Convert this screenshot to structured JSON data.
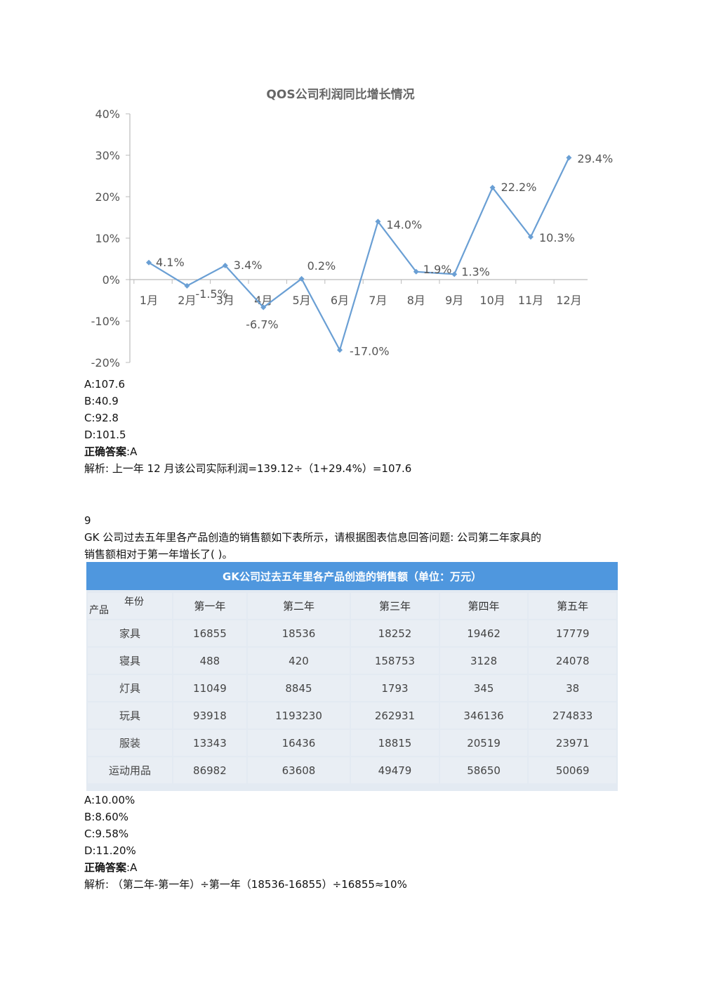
{
  "q8": {
    "chart_data": {
      "type": "line",
      "title": "QOS公司利润同比增长情况",
      "categories": [
        "1月",
        "2月",
        "3月",
        "4月",
        "5月",
        "6月",
        "7月",
        "8月",
        "9月",
        "10月",
        "11月",
        "12月"
      ],
      "series": [
        {
          "values": [
            4.1,
            -1.5,
            3.4,
            -6.7,
            0.2,
            -17.0,
            14.0,
            1.9,
            1.3,
            22.2,
            10.3,
            29.4
          ],
          "labels": [
            "4.1%",
            "-1.5%",
            "3.4%",
            "-6.7%",
            "0.2%",
            "-17.0%",
            "14.0%",
            "1.9%",
            "1.3%",
            "22.2%",
            "10.3%",
            "29.4%"
          ]
        }
      ],
      "yticks": [
        "40%",
        "30%",
        "20%",
        "10%",
        "0%",
        "-10%",
        "-20%"
      ],
      "ylim": [
        -20,
        40
      ],
      "grid": false,
      "color": "#6a9fd4"
    },
    "options": [
      "A:107.6",
      "B:40.9",
      "C:92.8",
      "D:101.5"
    ],
    "answer_label": "正确答案",
    "answer_value": ":A",
    "analysis": "解析: 上一年 12 月该公司实际利润=139.12÷（1+29.4%）=107.6"
  },
  "q9": {
    "number": "9",
    "question_line1": "GK 公司过去五年里各产品创造的销售额如下表所示，请根据图表信息回答问题: 公司第二年家具的",
    "question_line2": "销售额相对于第一年增长了( )。",
    "table": {
      "title": "GK公司过去五年里各产品创造的销售额（单位：万元）",
      "corner_year": "年份",
      "corner_product": "产品",
      "columns": [
        "第一年",
        "第二年",
        "第三年",
        "第四年",
        "第五年"
      ],
      "rows": [
        {
          "name": "家具",
          "values": [
            "16855",
            "18536",
            "18252",
            "19462",
            "17779"
          ]
        },
        {
          "name": "寝具",
          "values": [
            "488",
            "420",
            "158753",
            "3128",
            "24078"
          ]
        },
        {
          "name": "灯具",
          "values": [
            "11049",
            "8845",
            "1793",
            "345",
            "38"
          ]
        },
        {
          "name": "玩具",
          "values": [
            "93918",
            "1193230",
            "262931",
            "346136",
            "274833"
          ]
        },
        {
          "name": "服装",
          "values": [
            "13343",
            "16436",
            "18815",
            "20519",
            "23971"
          ]
        },
        {
          "name": "运动用品",
          "values": [
            "86982",
            "63608",
            "49479",
            "58650",
            "50069"
          ]
        }
      ],
      "header_color": "#4f97de",
      "cell_color": "#e9eef4"
    },
    "options": [
      "A:10.00%",
      "B:8.60%",
      "C:9.58%",
      "D:11.20%"
    ],
    "answer_label": "正确答案",
    "answer_value": ":A",
    "analysis": "解析: （第二年-第一年）÷第一年（18536-16855）÷16855≈10%"
  }
}
